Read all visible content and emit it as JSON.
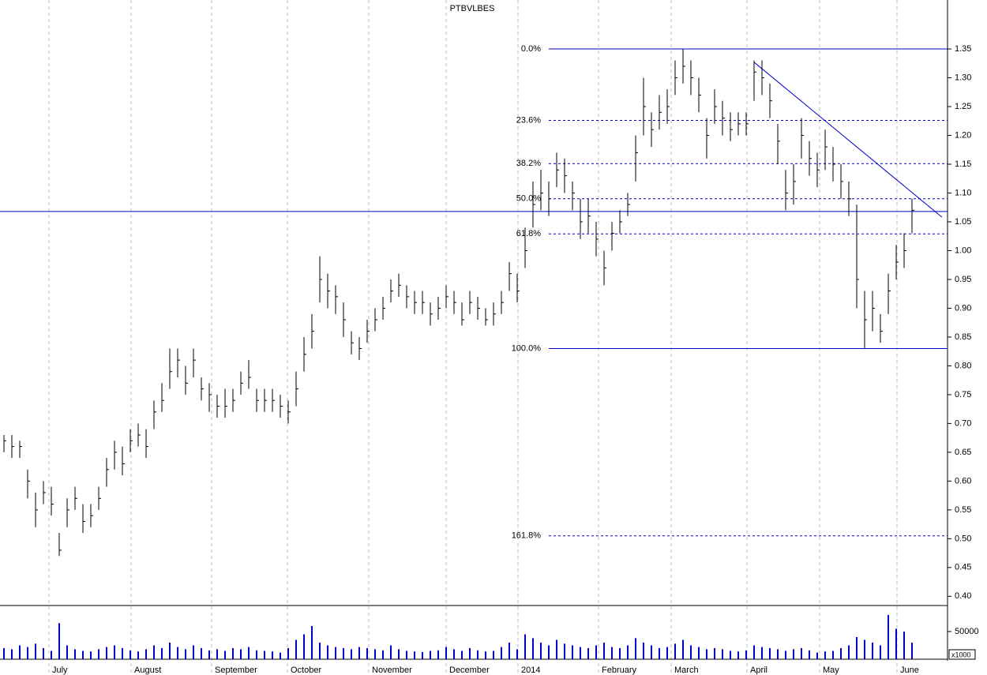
{
  "chart_data": {
    "type": "ohlc",
    "title": "PTBVLBES",
    "color": "#000000",
    "fib_color": "#0000cc",
    "xlim": [
      0,
      120
    ],
    "xticks": [
      {
        "value": 6.2,
        "label": "July"
      },
      {
        "value": 16.6,
        "label": "August"
      },
      {
        "value": 26.8,
        "label": "September"
      },
      {
        "value": 36.4,
        "label": "October"
      },
      {
        "value": 46.7,
        "label": "November"
      },
      {
        "value": 56.5,
        "label": "December"
      },
      {
        "value": 65.6,
        "label": "2014"
      },
      {
        "value": 75.8,
        "label": "February"
      },
      {
        "value": 85.0,
        "label": "March"
      },
      {
        "value": 94.6,
        "label": "April"
      },
      {
        "value": 103.8,
        "label": "May"
      },
      {
        "value": 113.6,
        "label": "June"
      }
    ],
    "ylim": [
      0.384,
      1.435
    ],
    "yticks": [
      {
        "value": 0.4,
        "label": "0.40"
      },
      0.45,
      {
        "value": 0.5,
        "label": "0.50"
      },
      0.55,
      {
        "value": 0.6,
        "label": "0.60"
      },
      0.65,
      {
        "value": 0.7,
        "label": "0.70"
      },
      0.75,
      {
        "value": 0.8,
        "label": "0.80"
      },
      0.85,
      {
        "value": 0.9,
        "label": "0.90"
      },
      0.95,
      {
        "value": 1.0,
        "label": "1.00"
      },
      1.05,
      {
        "value": 1.1,
        "label": "1.10"
      },
      1.15,
      {
        "value": 1.2,
        "label": "1.20"
      },
      1.25,
      {
        "value": 1.3,
        "label": "1.30"
      },
      1.35
    ],
    "high": [
      0.68,
      0.68,
      0.67,
      0.62,
      0.58,
      0.6,
      0.59,
      0.51,
      0.57,
      0.59,
      0.56,
      0.56,
      0.59,
      0.64,
      0.67,
      0.66,
      0.69,
      0.7,
      0.69,
      0.74,
      0.77,
      0.83,
      0.83,
      0.8,
      0.83,
      0.78,
      0.77,
      0.75,
      0.76,
      0.76,
      0.79,
      0.81,
      0.76,
      0.76,
      0.76,
      0.75,
      0.74,
      0.79,
      0.85,
      0.89,
      0.99,
      0.96,
      0.94,
      0.91,
      0.86,
      0.85,
      0.88,
      0.9,
      0.92,
      0.95,
      0.96,
      0.94,
      0.93,
      0.93,
      0.91,
      0.92,
      0.94,
      0.93,
      0.91,
      0.93,
      0.92,
      0.9,
      0.91,
      0.93,
      0.98,
      0.96,
      1.04,
      1.12,
      1.14,
      1.12,
      1.17,
      1.16,
      1.12,
      1.09,
      1.09,
      1.05,
      1.0,
      1.05,
      1.07,
      1.1,
      1.2,
      1.3,
      1.24,
      1.27,
      1.28,
      1.33,
      1.35,
      1.33,
      1.3,
      1.23,
      1.28,
      1.26,
      1.24,
      1.24,
      1.24,
      1.33,
      1.33,
      1.29,
      1.22,
      1.14,
      1.15,
      1.23,
      1.19,
      1.17,
      1.21,
      1.18,
      1.15,
      1.12,
      1.08,
      0.93,
      0.93,
      0.89,
      0.96,
      1.01,
      1.03,
      1.09
    ],
    "low": [
      0.65,
      0.64,
      0.64,
      0.57,
      0.52,
      0.56,
      0.54,
      0.47,
      0.52,
      0.55,
      0.51,
      0.52,
      0.55,
      0.59,
      0.62,
      0.61,
      0.65,
      0.66,
      0.64,
      0.69,
      0.72,
      0.76,
      0.78,
      0.75,
      0.78,
      0.74,
      0.72,
      0.71,
      0.71,
      0.72,
      0.75,
      0.76,
      0.72,
      0.72,
      0.72,
      0.71,
      0.7,
      0.73,
      0.79,
      0.83,
      0.91,
      0.9,
      0.89,
      0.85,
      0.82,
      0.81,
      0.84,
      0.86,
      0.88,
      0.91,
      0.92,
      0.9,
      0.89,
      0.89,
      0.87,
      0.88,
      0.9,
      0.89,
      0.87,
      0.89,
      0.88,
      0.87,
      0.87,
      0.89,
      0.93,
      0.91,
      0.97,
      1.04,
      1.07,
      1.06,
      1.11,
      1.1,
      1.07,
      1.02,
      1.03,
      0.99,
      0.94,
      1.0,
      1.03,
      1.06,
      1.12,
      1.2,
      1.18,
      1.21,
      1.22,
      1.27,
      1.29,
      1.27,
      1.24,
      1.16,
      1.22,
      1.2,
      1.19,
      1.2,
      1.2,
      1.26,
      1.27,
      1.23,
      1.15,
      1.07,
      1.08,
      1.16,
      1.13,
      1.11,
      1.14,
      1.12,
      1.09,
      1.06,
      0.9,
      0.83,
      0.86,
      0.84,
      0.89,
      0.95,
      0.97,
      1.03
    ],
    "close": [
      0.67,
      0.66,
      0.66,
      0.6,
      0.55,
      0.58,
      0.56,
      0.48,
      0.55,
      0.57,
      0.53,
      0.54,
      0.57,
      0.62,
      0.65,
      0.63,
      0.67,
      0.68,
      0.66,
      0.72,
      0.74,
      0.79,
      0.81,
      0.77,
      0.81,
      0.76,
      0.75,
      0.73,
      0.73,
      0.74,
      0.77,
      0.78,
      0.74,
      0.74,
      0.74,
      0.73,
      0.72,
      0.76,
      0.82,
      0.86,
      0.95,
      0.93,
      0.92,
      0.88,
      0.84,
      0.83,
      0.86,
      0.88,
      0.9,
      0.93,
      0.94,
      0.92,
      0.91,
      0.91,
      0.89,
      0.9,
      0.92,
      0.91,
      0.88,
      0.91,
      0.9,
      0.88,
      0.89,
      0.91,
      0.96,
      0.93,
      1.0,
      1.08,
      1.1,
      1.09,
      1.14,
      1.13,
      1.1,
      1.05,
      1.06,
      1.02,
      0.97,
      1.03,
      1.05,
      1.08,
      1.17,
      1.25,
      1.21,
      1.24,
      1.25,
      1.3,
      1.32,
      1.3,
      1.27,
      1.2,
      1.25,
      1.23,
      1.21,
      1.22,
      1.22,
      1.31,
      1.3,
      1.26,
      1.19,
      1.1,
      1.12,
      1.2,
      1.16,
      1.14,
      1.18,
      1.15,
      1.12,
      1.09,
      0.95,
      0.88,
      0.9,
      0.86,
      0.93,
      0.98,
      1.0,
      1.07
    ],
    "volume": [
      20000,
      18000,
      25000,
      22000,
      28000,
      20000,
      15000,
      65000,
      25000,
      18000,
      15000,
      14000,
      18000,
      22000,
      25000,
      20000,
      16000,
      14000,
      18000,
      25000,
      20000,
      30000,
      22000,
      18000,
      25000,
      20000,
      16000,
      18000,
      15000,
      20000,
      18000,
      22000,
      16000,
      15000,
      14000,
      12000,
      20000,
      35000,
      45000,
      60000,
      30000,
      25000,
      22000,
      20000,
      18000,
      22000,
      20000,
      18000,
      16000,
      25000,
      18000,
      15000,
      14000,
      13000,
      15000,
      16000,
      22000,
      18000,
      15000,
      20000,
      16000,
      14000,
      15000,
      22000,
      30000,
      18000,
      45000,
      38000,
      30000,
      25000,
      35000,
      28000,
      25000,
      22000,
      20000,
      25000,
      30000,
      22000,
      20000,
      25000,
      38000,
      30000,
      25000,
      20000,
      22000,
      28000,
      35000,
      25000,
      22000,
      18000,
      20000,
      18000,
      15000,
      14000,
      16000,
      25000,
      22000,
      20000,
      18000,
      15000,
      18000,
      20000,
      16000,
      12000,
      14000,
      15000,
      20000,
      25000,
      40000,
      35000,
      30000,
      25000,
      80000,
      55000,
      50000,
      30000
    ],
    "volume_color": "#0000cc",
    "vlim": [
      0,
      97000
    ],
    "vticks": [
      50000
    ],
    "volume_unit_label": "x1000",
    "fibonacci": {
      "x_start": 69.5,
      "levels": [
        {
          "value": 1.35,
          "label": "0.0%",
          "style": "solid"
        },
        {
          "value": 1.226,
          "label": "23.6%",
          "style": "dashed"
        },
        {
          "value": 1.151,
          "label": "38.2%",
          "style": "dashed"
        },
        {
          "value": 1.09,
          "label": "50.0%",
          "style": "dashed"
        },
        {
          "value": 1.029,
          "label": "61.8%",
          "style": "dashed"
        },
        {
          "value": 0.83,
          "label": "100.0%",
          "style": "solid"
        },
        {
          "value": 0.505,
          "label": "161.8%",
          "style": "dashed"
        }
      ]
    },
    "hlines": [
      1.068
    ],
    "trendlines": [
      {
        "x": [
          95.5,
          119.3
        ],
        "y": [
          1.327,
          1.058
        ]
      }
    ]
  }
}
